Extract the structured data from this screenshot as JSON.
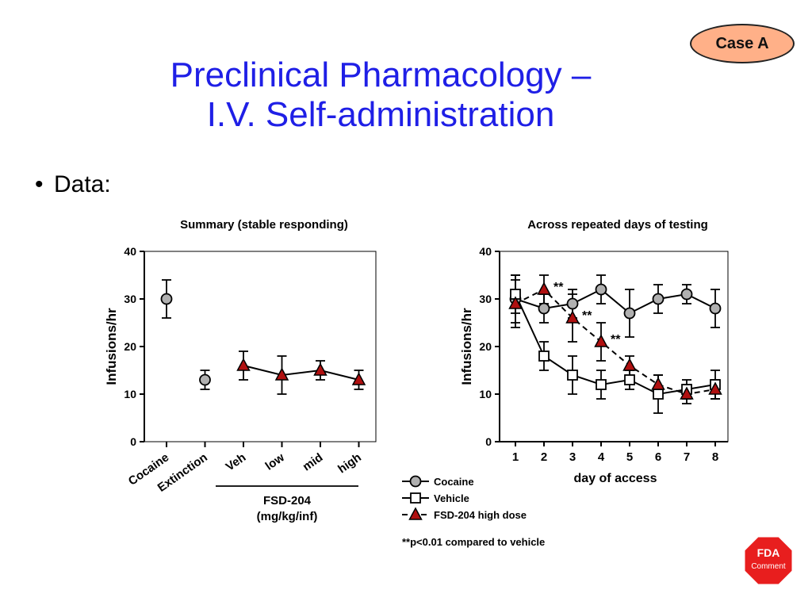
{
  "slide": {
    "title_line1": "Preclinical Pharmacology –",
    "title_line2": "I.V. Self-administration",
    "case_badge": "Case A",
    "bullet": "Data:",
    "footnote": "**p<0.01 compared to vehicle",
    "fda_line1": "FDA",
    "fda_line2": "Comment"
  },
  "colors": {
    "title": "#1f1fe6",
    "cocaine_marker": "#b0b0b0",
    "fsd_marker": "#b01010",
    "badge": "#ffb088",
    "fda": "#e81e1e"
  },
  "chart_data": [
    {
      "type": "scatter",
      "title": "Summary  (stable responding)",
      "ylabel": "Infusions/hr",
      "ylim": [
        0,
        40
      ],
      "yticks": [
        0,
        10,
        20,
        30,
        40
      ],
      "categories": [
        "Cocaine",
        "Extinction",
        "Veh",
        "low",
        "mid",
        "high"
      ],
      "group_label_line1": "FSD-204",
      "group_label_line2": "(mg/kg/inf)",
      "series": [
        {
          "name": "Cocaine",
          "marker": "circle",
          "points": [
            {
              "x": "Cocaine",
              "y": 30,
              "err": 4
            }
          ]
        },
        {
          "name": "Extinction",
          "marker": "circle",
          "points": [
            {
              "x": "Extinction",
              "y": 13,
              "err": 2
            }
          ]
        },
        {
          "name": "FSD-204",
          "marker": "triangle",
          "connected": true,
          "points": [
            {
              "x": "Veh",
              "y": 16,
              "err": 3
            },
            {
              "x": "low",
              "y": 14,
              "err": 4
            },
            {
              "x": "mid",
              "y": 15,
              "err": 2
            },
            {
              "x": "high",
              "y": 13,
              "err": 2
            }
          ]
        }
      ]
    },
    {
      "type": "line",
      "title": "Across repeated days of testing",
      "xlabel": "day of access",
      "ylabel": "Infusions/hr",
      "ylim": [
        0,
        40
      ],
      "yticks": [
        0,
        10,
        20,
        30,
        40
      ],
      "x": [
        1,
        2,
        3,
        4,
        5,
        6,
        7,
        8
      ],
      "series": [
        {
          "name": "Cocaine",
          "marker": "circle",
          "dash": false,
          "values": [
            30,
            28,
            29,
            32,
            27,
            30,
            31,
            28
          ],
          "errors": [
            5,
            3,
            3,
            3,
            5,
            3,
            2,
            4
          ]
        },
        {
          "name": "Vehicle",
          "marker": "square",
          "dash": false,
          "values": [
            31,
            18,
            14,
            12,
            13,
            10,
            11,
            12
          ],
          "errors": [
            4,
            3,
            4,
            3,
            2,
            4,
            2,
            3
          ]
        },
        {
          "name": "FSD-204 high dose",
          "marker": "triangle",
          "dash": true,
          "values": [
            29,
            32,
            26,
            21,
            16,
            12,
            10,
            11
          ],
          "errors": [
            5,
            3,
            5,
            4,
            2,
            2,
            2,
            2
          ]
        }
      ],
      "annotations": [
        {
          "x": 2,
          "text": "**"
        },
        {
          "x": 3,
          "text": "**"
        },
        {
          "x": 4,
          "text": "**"
        }
      ],
      "legend": [
        "Cocaine",
        "Vehicle",
        "FSD-204 high dose"
      ],
      "legend_position": "bottom-left"
    }
  ]
}
